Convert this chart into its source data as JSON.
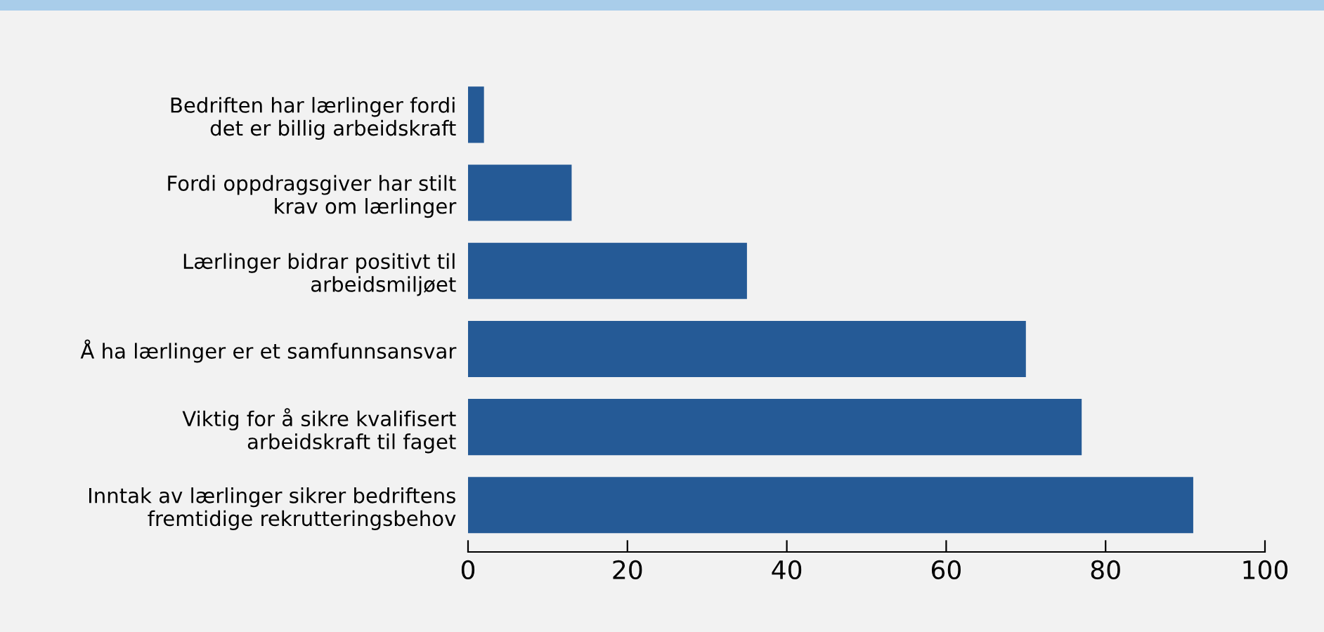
{
  "chart_data": {
    "type": "bar",
    "orientation": "horizontal",
    "categories": [
      "Bedriften har lærlinger fordi\ndet er billig arbeidskraft",
      "Fordi oppdragsgiver har stilt\nkrav om lærlinger",
      "Lærlinger bidrar positivt til\narbeidsmiljøet",
      "Å ha lærlinger er et samfunnsansvar",
      "Viktig for å sikre kvalifisert\narbeidskraft til faget",
      "Inntak av lærlinger sikrer bedriftens\nfremtidige rekrutteringsbehov"
    ],
    "values": [
      2,
      13,
      35,
      70,
      77,
      91
    ],
    "color": "#255a96",
    "xlim": [
      0,
      100
    ],
    "xticks": [
      0,
      20,
      40,
      60,
      80,
      100
    ],
    "grid": false,
    "legend": false
  }
}
